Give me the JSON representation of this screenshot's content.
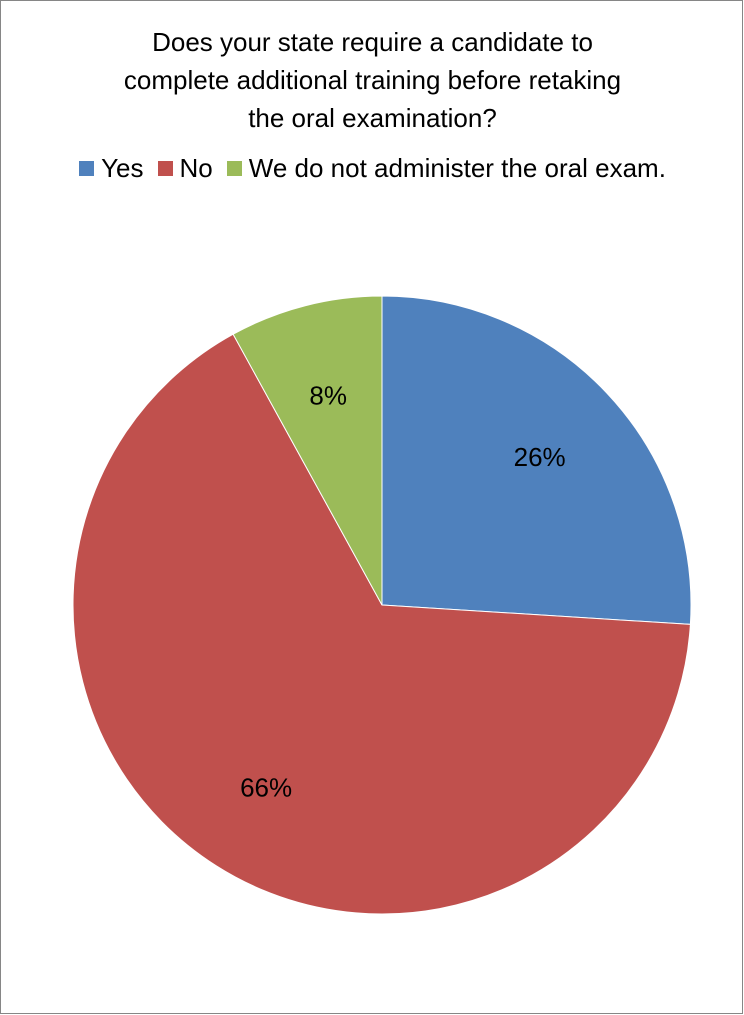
{
  "chart_data": {
    "type": "pie",
    "title_lines": [
      "Does your state require a candidate to",
      "complete additional training before retaking",
      "the oral examination?"
    ],
    "legend_position": "top",
    "slices": [
      {
        "label": "Yes",
        "value": 26,
        "display": "26%",
        "color": "#4F81BD"
      },
      {
        "label": "No",
        "value": 66,
        "display": "66%",
        "color": "#C0504D"
      },
      {
        "label": "We do not administer the oral exam.",
        "value": 8,
        "display": "8%",
        "color": "#9BBB59"
      }
    ]
  }
}
